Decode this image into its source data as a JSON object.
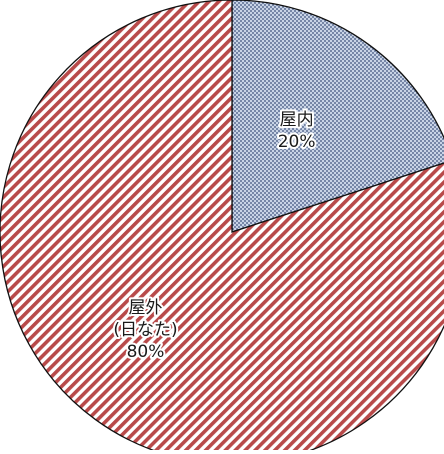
{
  "chart_data": {
    "type": "pie",
    "slices": [
      {
        "name_lines": [
          "屋内"
        ],
        "label": "20%",
        "value": 20,
        "color": "#c8d3e6",
        "pattern": "dots",
        "pattern_color": "#3b4f7a"
      },
      {
        "name_lines": [
          "屋外",
          "(日なた)"
        ],
        "label": "80%",
        "value": 80,
        "color": "#ffffff",
        "pattern": "diagonal-stripes",
        "pattern_color": "#b84a4a"
      }
    ],
    "start": "12 o'clock",
    "direction": "clockwise",
    "legend": "none",
    "title": ""
  }
}
